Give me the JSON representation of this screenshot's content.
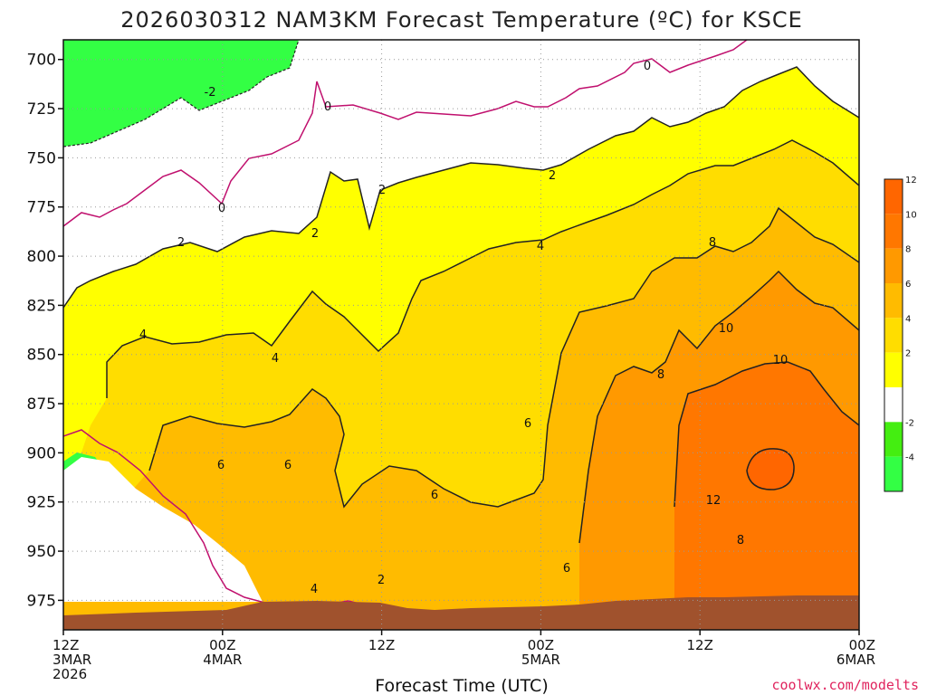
{
  "chart_data": {
    "type": "heatmap",
    "title": "2026030312 NAM3KM Forecast Temperature (ºC) for KSCE",
    "xlabel": "Forecast Time (UTC)",
    "ylabel": "",
    "credit": "coolwx.com/modelts",
    "y_axis": {
      "ticks": [
        700,
        725,
        750,
        775,
        800,
        825,
        850,
        875,
        900,
        925,
        950,
        975
      ],
      "inverted": true,
      "lim": [
        690,
        990
      ]
    },
    "x_axis": {
      "ticks": [
        {
          "line1": "12Z",
          "line2": "3MAR",
          "line3": "2026"
        },
        {
          "line1": "00Z",
          "line2": "4MAR",
          "line3": ""
        },
        {
          "line1": "12Z",
          "line2": "",
          "line3": ""
        },
        {
          "line1": "00Z",
          "line2": "5MAR",
          "line3": ""
        },
        {
          "line1": "12Z",
          "line2": "",
          "line3": ""
        },
        {
          "line1": "00Z",
          "line2": "6MAR",
          "line3": ""
        }
      ]
    },
    "grid": true,
    "colorbar": {
      "bins": [
        {
          "min": -6,
          "max": -4,
          "color": "#33ff44"
        },
        {
          "min": -4,
          "max": -2,
          "color": "#44ee11"
        },
        {
          "min": -2,
          "max": 2,
          "color": "#ffffff"
        },
        {
          "min": 2,
          "max": 4,
          "color": "#ffff00"
        },
        {
          "min": 4,
          "max": 6,
          "color": "#ffdd00"
        },
        {
          "min": 6,
          "max": 8,
          "color": "#ffbb00"
        },
        {
          "min": 8,
          "max": 10,
          "color": "#ff9900"
        },
        {
          "min": 10,
          "max": 12,
          "color": "#ff7700"
        },
        {
          "min": 12,
          "max": 14,
          "color": "#ff6600"
        }
      ],
      "tick_labels": [
        "-4",
        "-2",
        "2",
        "4",
        "6",
        "8",
        "10",
        "12"
      ]
    },
    "contour_labels": [
      "-2",
      "0",
      "0",
      "0",
      "2",
      "2",
      "2",
      "2",
      "2",
      "4",
      "4",
      "4",
      "4",
      "6",
      "6",
      "6",
      "6",
      "6",
      "8",
      "8",
      "8",
      "10",
      "10",
      "12"
    ],
    "terrain_color": "#a0522d"
  }
}
